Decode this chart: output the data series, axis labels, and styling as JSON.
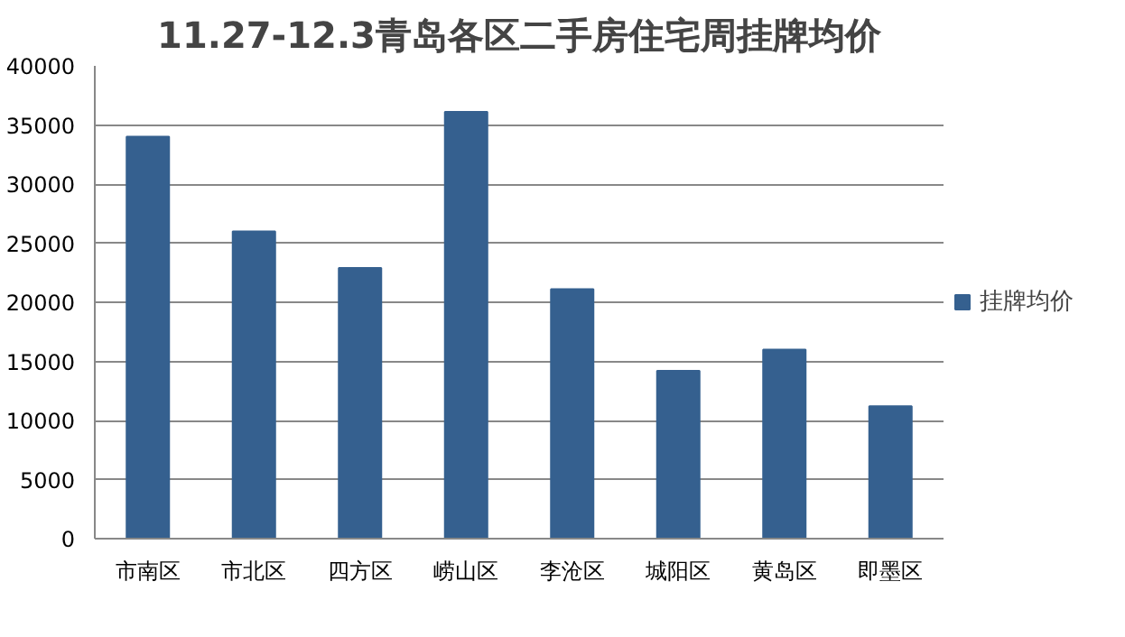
{
  "chart_data": {
    "type": "bar",
    "title": "11.27-12.3青岛各区二手房住宅周挂牌均价",
    "categories": [
      "市南区",
      "市北区",
      "四方区",
      "崂山区",
      "李沧区",
      "城阳区",
      "黄岛区",
      "即墨区"
    ],
    "series": [
      {
        "name": "挂牌均价",
        "color": "#35608f",
        "values": [
          34000,
          26000,
          22900,
          36100,
          21100,
          14200,
          16000,
          11200
        ]
      }
    ],
    "ylim": [
      0,
      40000
    ],
    "yticks": [
      0,
      5000,
      10000,
      15000,
      20000,
      25000,
      30000,
      35000,
      40000
    ],
    "grid": "y",
    "legend": "right"
  }
}
